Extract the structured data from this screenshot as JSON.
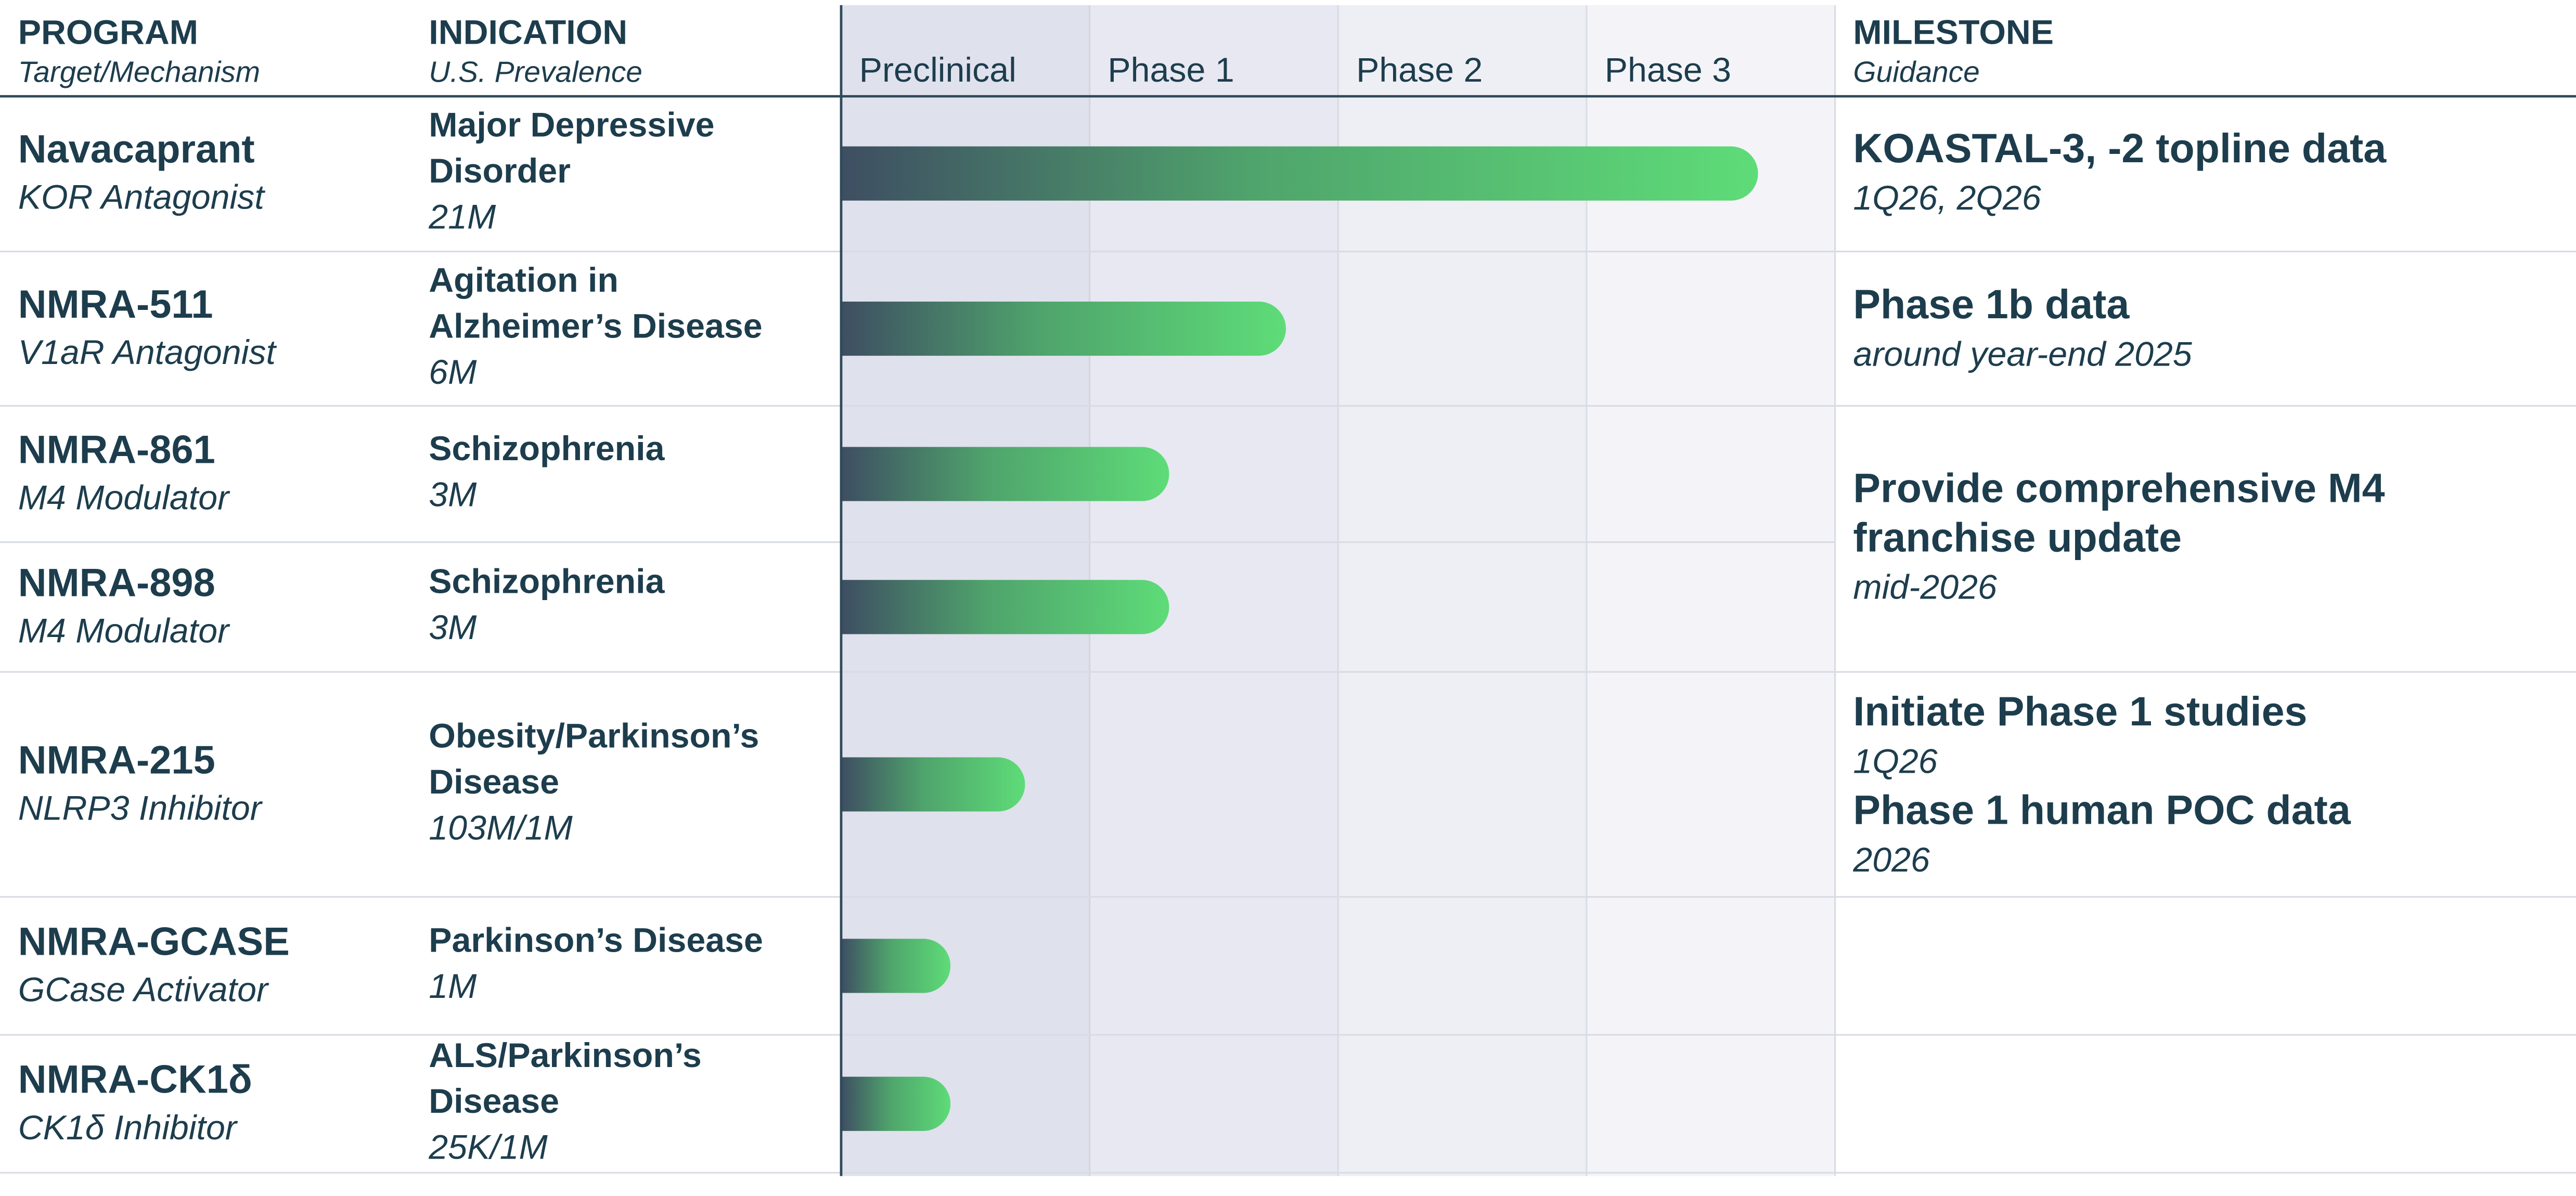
{
  "header": {
    "program": "PROGRAM",
    "program_sub": "Target/Mechanism",
    "indication": "INDICATION",
    "indication_sub": "U.S. Prevalence",
    "phases": [
      "Preclinical",
      "Phase 1",
      "Phase 2",
      "Phase 3"
    ],
    "milestone": "MILESTONE",
    "milestone_sub": "Guidance"
  },
  "programs": [
    {
      "name": "Navacaprant",
      "target": "KOR Antagonist",
      "indication": [
        "Major Depressive",
        "Disorder"
      ],
      "prevalence": "21M",
      "progress": 3.69
    },
    {
      "name": "NMRA-511",
      "target": "V1aR Antagonist",
      "indication": [
        "Agitation in",
        "Alzheimer’s Disease"
      ],
      "prevalence": "6M",
      "progress": 1.79
    },
    {
      "name": "NMRA-861",
      "target": "M4 Modulator",
      "indication": [
        "Schizophrenia"
      ],
      "prevalence": "3M",
      "progress": 1.32
    },
    {
      "name": "NMRA-898",
      "target": "M4 Modulator",
      "indication": [
        "Schizophrenia"
      ],
      "prevalence": "3M",
      "progress": 1.32
    },
    {
      "name": "NMRA-215",
      "target": "NLRP3 Inhibitor",
      "indication": [
        "Obesity/Parkinson’s",
        "Disease"
      ],
      "prevalence": "103M/1M",
      "progress": 0.74
    },
    {
      "name": "NMRA-GCASE",
      "target": "GCase Activator",
      "indication": [
        "Parkinson’s Disease"
      ],
      "prevalence": "1M",
      "progress": 0.44
    },
    {
      "name": "NMRA-CK1δ",
      "target": "CK1δ Inhibitor",
      "indication": [
        "ALS/Parkinson’s",
        "Disease"
      ],
      "prevalence": "25K/1M",
      "progress": 0.44
    }
  ],
  "milestones": [
    {
      "entries": [
        {
          "title": [
            "KOASTAL-3, -2 topline data"
          ],
          "guidance": "1Q26, 2Q26"
        }
      ]
    },
    {
      "entries": [
        {
          "title": [
            "Phase 1b data"
          ],
          "guidance": "around year-end 2025"
        }
      ]
    },
    {
      "entries": [
        {
          "title": [
            "Provide comprehensive M4",
            "franchise update"
          ],
          "guidance": "mid-2026"
        }
      ]
    },
    {
      "entries": [
        {
          "title": [
            "Initiate Phase 1 studies"
          ],
          "guidance": "1Q26"
        },
        {
          "title": [
            "Phase 1 human POC data"
          ],
          "guidance": "2026"
        }
      ]
    }
  ]
}
